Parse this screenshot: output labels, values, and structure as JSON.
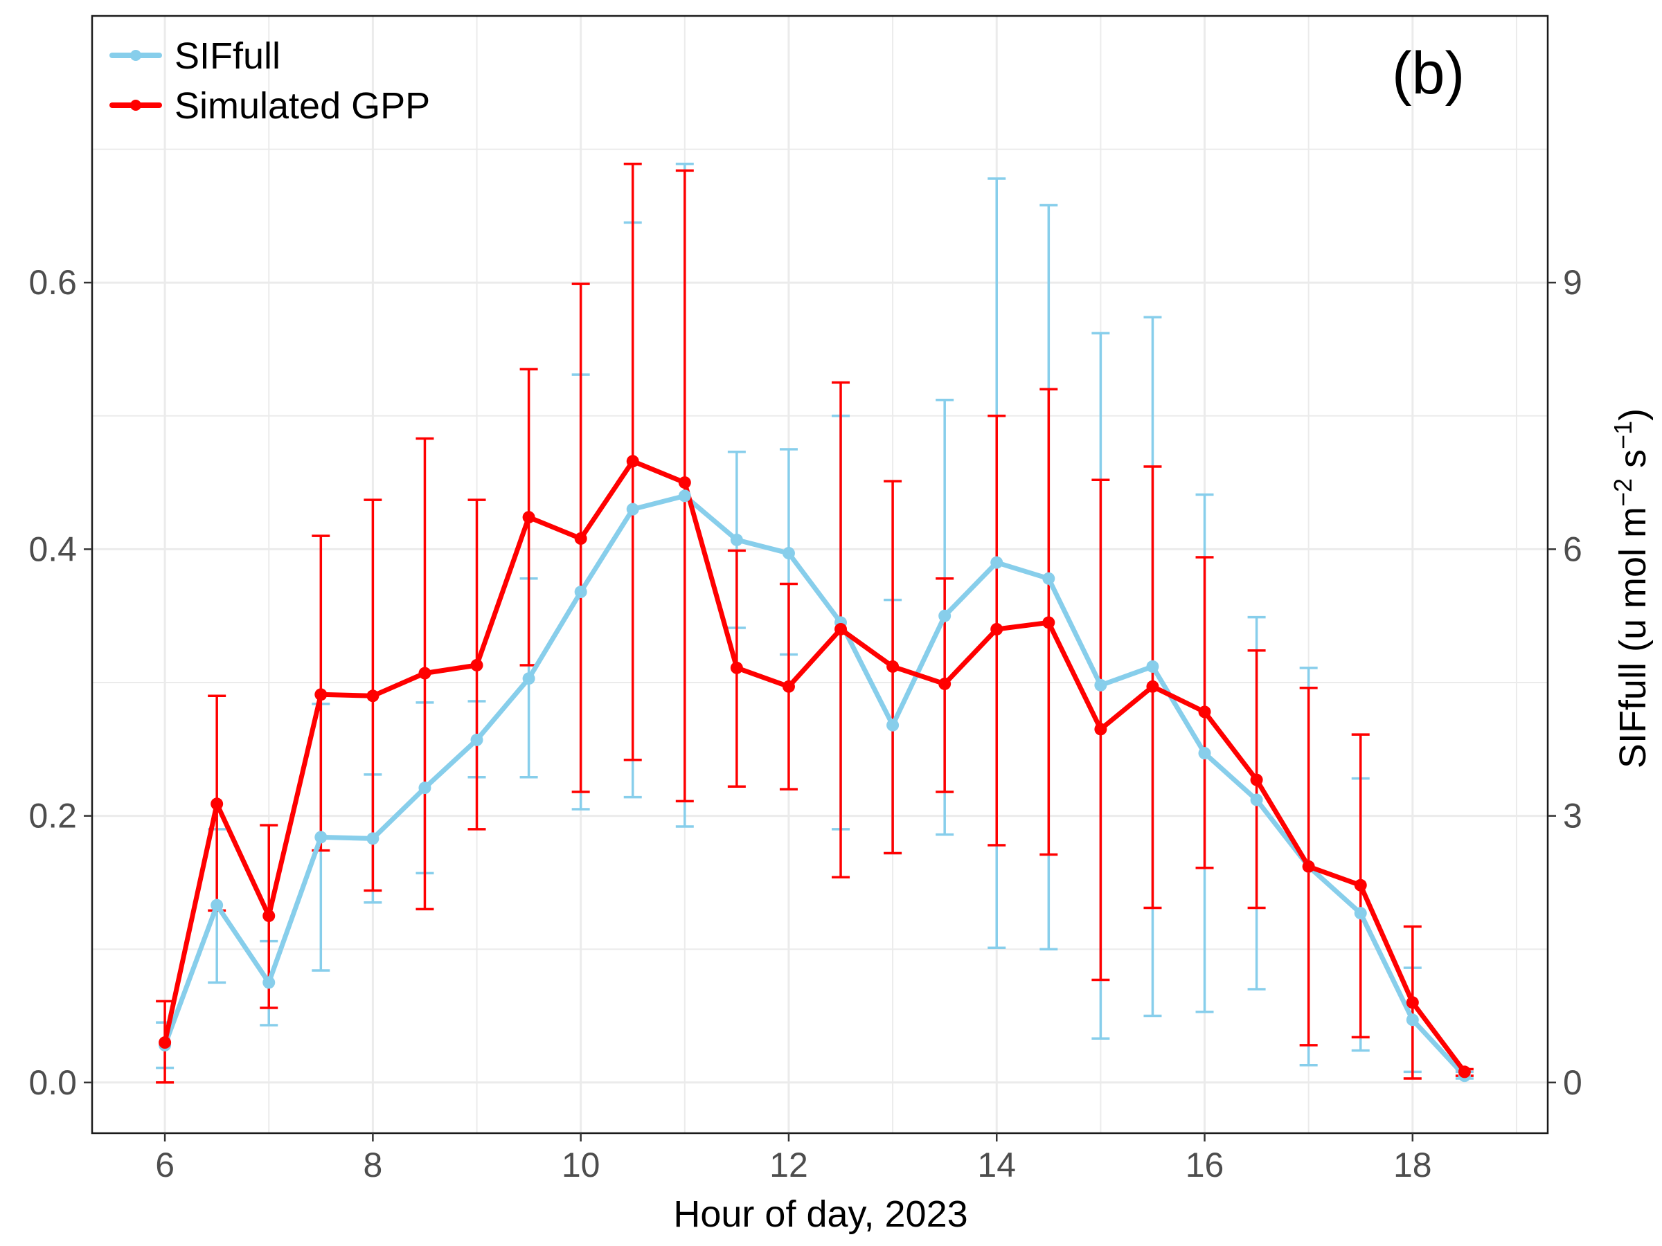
{
  "chart_data": {
    "type": "line",
    "panel_label": "(b)",
    "xlabel": "Hour of day, 2023",
    "ylabel": "",
    "y2label": "SIFfull (u mol m",
    "y2label_sup1": "−2",
    "y2label_mid": " s",
    "y2label_sup2": "−1",
    "y2label_end": ")",
    "xlim": [
      5.3,
      19.3
    ],
    "ylim": [
      -0.038,
      0.8
    ],
    "y2lim": [
      -0.57,
      12.0
    ],
    "grid": true,
    "legend_position": "top-left",
    "x_ticks": [
      6,
      8,
      10,
      12,
      14,
      16,
      18
    ],
    "x_tick_labels": [
      "6",
      "8",
      "10",
      "12",
      "14",
      "16",
      "18"
    ],
    "y_ticks": [
      0.0,
      0.2,
      0.4,
      0.6
    ],
    "y_tick_labels": [
      "0.0",
      "0.2",
      "0.4",
      "0.6"
    ],
    "y2_ticks": [
      0,
      3,
      6,
      9
    ],
    "y2_tick_labels": [
      "0",
      "3",
      "6",
      "9"
    ],
    "x": [
      6,
      6.5,
      7,
      7.5,
      8,
      8.5,
      9,
      9.5,
      10,
      10.5,
      11,
      11.5,
      12,
      12.5,
      13,
      13.5,
      14,
      14.5,
      15,
      15.5,
      16,
      16.5,
      17,
      17.5,
      18,
      18.5
    ],
    "series": [
      {
        "name": "SIFfull",
        "color": "#87ceeb",
        "values": [
          0.028,
          0.133,
          0.075,
          0.184,
          0.183,
          0.221,
          0.257,
          0.303,
          0.368,
          0.43,
          0.44,
          0.407,
          0.397,
          0.345,
          0.268,
          0.35,
          0.39,
          0.378,
          0.298,
          0.312,
          0.247,
          0.212,
          0.162,
          0.127,
          0.047,
          0.005
        ],
        "err_low": [
          0.011,
          0.075,
          0.043,
          0.084,
          0.135,
          0.157,
          0.229,
          0.229,
          0.205,
          0.214,
          0.192,
          0.341,
          0.321,
          0.19,
          0.172,
          0.186,
          0.101,
          0.1,
          0.033,
          0.05,
          0.053,
          0.07,
          0.013,
          0.024,
          0.008,
          0.003
        ],
        "err_high": [
          0.045,
          0.19,
          0.106,
          0.284,
          0.231,
          0.285,
          0.286,
          0.378,
          0.531,
          0.645,
          0.689,
          0.473,
          0.475,
          0.5,
          0.362,
          0.512,
          0.678,
          0.658,
          0.562,
          0.574,
          0.441,
          0.349,
          0.311,
          0.228,
          0.086,
          0.008
        ]
      },
      {
        "name": "Simulated GPP",
        "color": "#ff0000",
        "values": [
          0.03,
          0.209,
          0.125,
          0.291,
          0.29,
          0.307,
          0.313,
          0.424,
          0.408,
          0.466,
          0.45,
          0.311,
          0.297,
          0.34,
          0.312,
          0.299,
          0.34,
          0.345,
          0.265,
          0.297,
          0.278,
          0.227,
          0.162,
          0.148,
          0.06,
          0.008
        ],
        "err_low": [
          0.0,
          0.129,
          0.056,
          0.174,
          0.144,
          0.13,
          0.19,
          0.313,
          0.218,
          0.242,
          0.211,
          0.222,
          0.22,
          0.154,
          0.172,
          0.218,
          0.178,
          0.171,
          0.077,
          0.131,
          0.161,
          0.131,
          0.028,
          0.034,
          0.003,
          0.005
        ],
        "err_high": [
          0.061,
          0.29,
          0.193,
          0.41,
          0.437,
          0.483,
          0.437,
          0.535,
          0.599,
          0.689,
          0.684,
          0.399,
          0.374,
          0.525,
          0.451,
          0.378,
          0.5,
          0.52,
          0.452,
          0.462,
          0.394,
          0.324,
          0.296,
          0.261,
          0.117,
          0.01
        ]
      }
    ]
  }
}
